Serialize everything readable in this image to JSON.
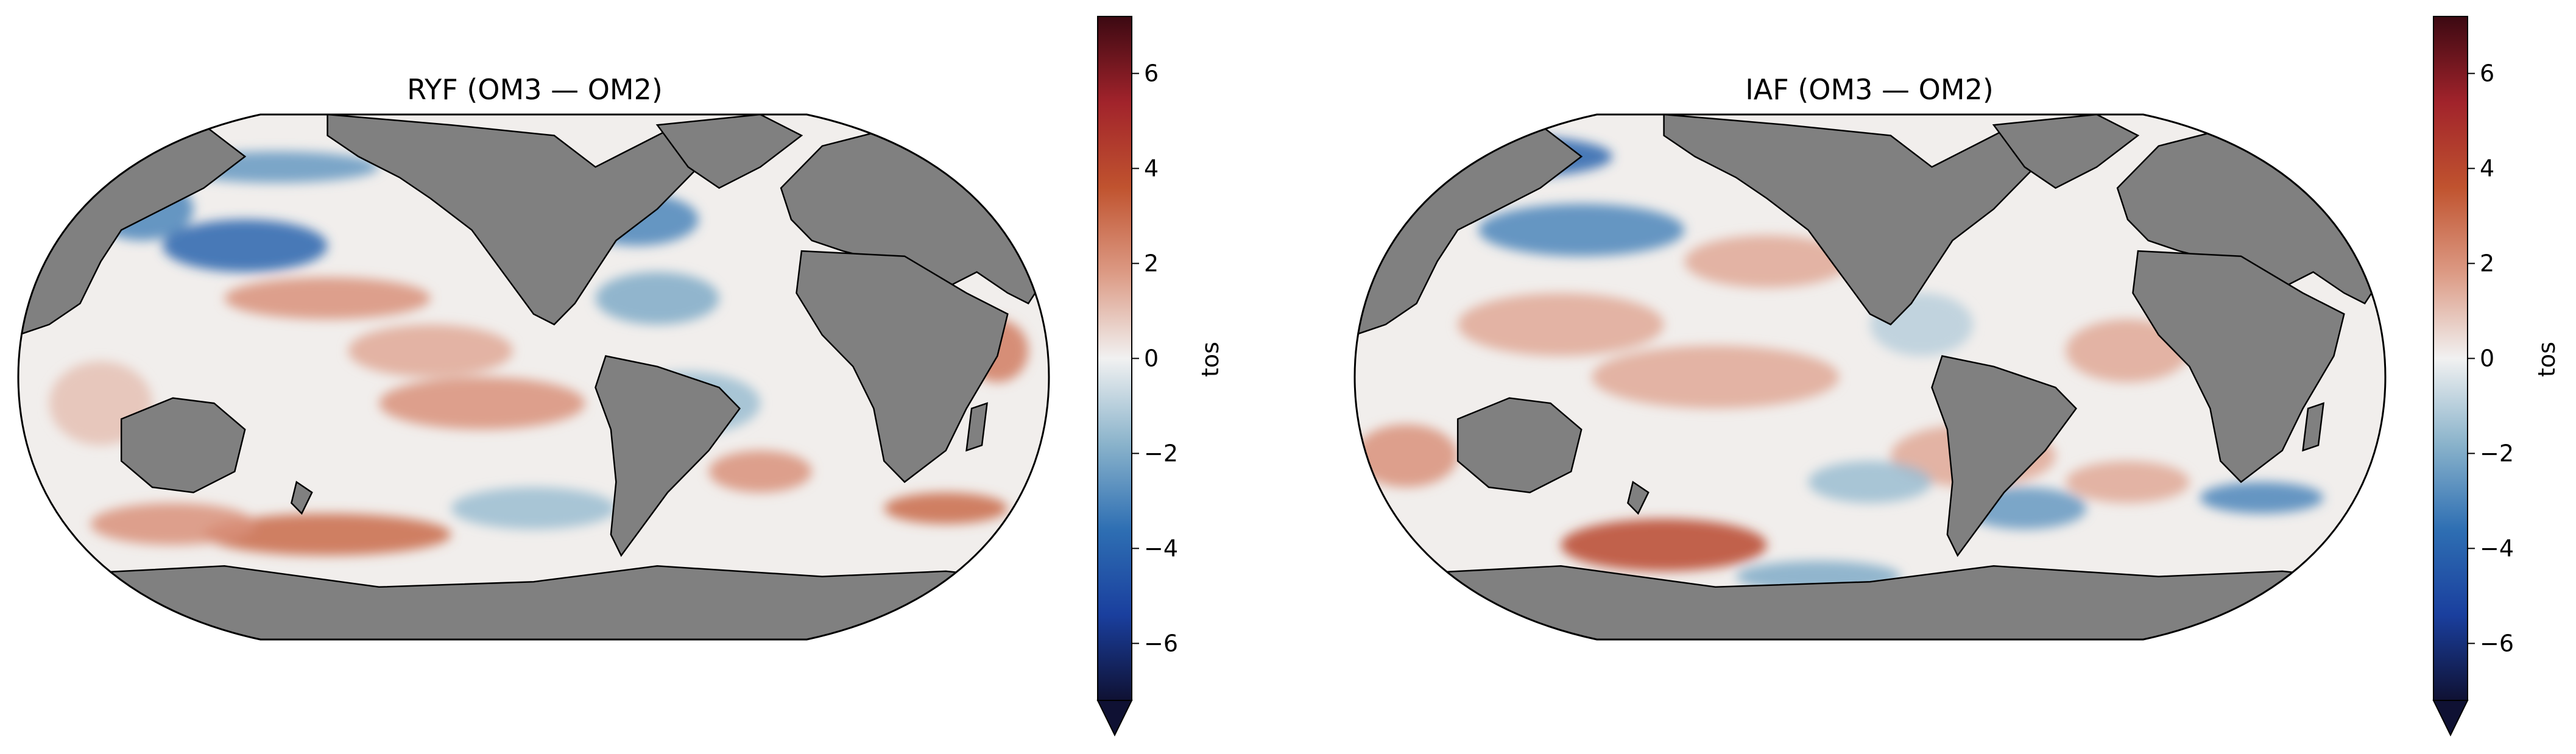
{
  "panels": [
    {
      "title": "RYF (OM3 — OM2)",
      "colorbar_label": "tos"
    },
    {
      "title": "IAF (OM3 — OM2)",
      "colorbar_label": "tos"
    }
  ],
  "colorbar_ticks": [
    "−6",
    "−4",
    "−2",
    "0",
    "2",
    "4",
    "6"
  ],
  "colorbar_tick_values": [
    -6,
    -4,
    -2,
    0,
    2,
    4,
    6
  ],
  "colorbar_range": [
    -7.2,
    7.2
  ],
  "colormap": [
    "#0f1133",
    "#1a3f9e",
    "#2e6fb3",
    "#8ab3cb",
    "#f1f1f1",
    "#dc9a84",
    "#c0532f",
    "#a1232b",
    "#3c0912"
  ],
  "colors": {
    "land": "#808080",
    "coastline": "#000000",
    "ocean_neutral": "#f1eeec"
  }
}
